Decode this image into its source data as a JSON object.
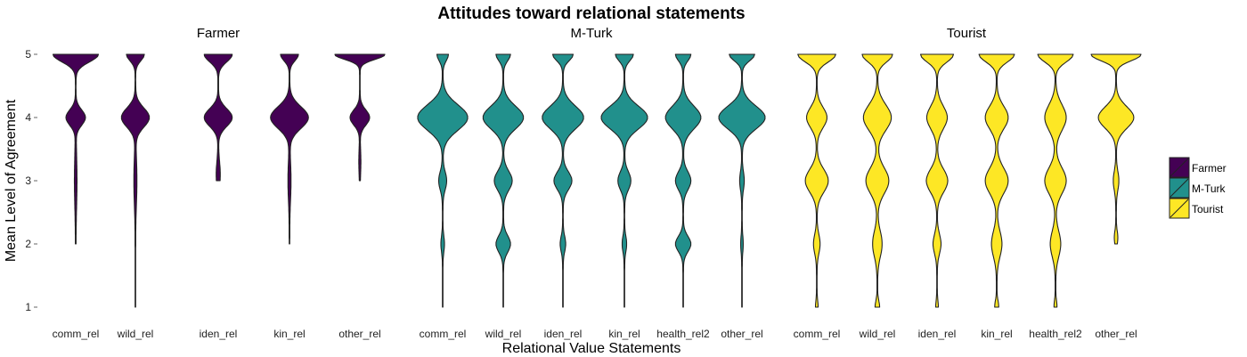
{
  "chart_data": {
    "type": "violin",
    "title": "Attitudes toward relational statements",
    "xlabel": "Relational Value Statements",
    "ylabel": "Mean Level of Agreement",
    "ylim": [
      1,
      5
    ],
    "yticks": [
      1,
      2,
      3,
      4,
      5
    ],
    "grid": false,
    "legend_position": "right",
    "legend": [
      {
        "name": "Farmer",
        "color": "#440154"
      },
      {
        "name": "M-Turk",
        "color": "#21908C"
      },
      {
        "name": "Tourist",
        "color": "#FDE725"
      }
    ],
    "facets": [
      {
        "name": "Farmer",
        "color": "#440154",
        "categories": [
          "comm_rel",
          "wild_rel",
          "iden_rel",
          "kin_rel",
          "other_rel"
        ],
        "violins": [
          {
            "category": "comm_rel",
            "min": 2,
            "max": 5,
            "peaks": [
              [
                5,
                0.9,
                0.12
              ],
              [
                4,
                0.38,
                0.12
              ],
              [
                3,
                0.04,
                0.4
              ]
            ]
          },
          {
            "category": "wild_rel",
            "min": 1,
            "max": 5,
            "peaks": [
              [
                5,
                0.35,
                0.1
              ],
              [
                4,
                0.55,
                0.15
              ],
              [
                3,
                0.05,
                0.35
              ]
            ]
          },
          {
            "category": "iden_rel",
            "min": 3,
            "max": 5,
            "peaks": [
              [
                5,
                0.55,
                0.12
              ],
              [
                4,
                0.55,
                0.14
              ],
              [
                3.1,
                0.07,
                0.2
              ]
            ]
          },
          {
            "category": "kin_rel",
            "min": 2,
            "max": 5,
            "peaks": [
              [
                5,
                0.35,
                0.1
              ],
              [
                4,
                0.75,
                0.17
              ],
              [
                3,
                0.05,
                0.3
              ]
            ]
          },
          {
            "category": "other_rel",
            "min": 3,
            "max": 5,
            "peaks": [
              [
                5,
                1.0,
                0.08
              ],
              [
                4,
                0.38,
                0.12
              ],
              [
                3.3,
                0.03,
                0.2
              ]
            ]
          }
        ]
      },
      {
        "name": "M-Turk",
        "color": "#21908C",
        "categories": [
          "comm_rel",
          "wild_rel",
          "iden_rel",
          "kin_rel",
          "health_rel2",
          "other_rel"
        ],
        "violins": [
          {
            "category": "comm_rel",
            "min": 1,
            "max": 5,
            "peaks": [
              [
                5,
                0.22,
                0.1
              ],
              [
                4,
                1.0,
                0.2
              ],
              [
                3,
                0.15,
                0.14
              ],
              [
                2,
                0.06,
                0.12
              ]
            ]
          },
          {
            "category": "wild_rel",
            "min": 1,
            "max": 5,
            "peaks": [
              [
                5,
                0.28,
                0.1
              ],
              [
                4,
                0.8,
                0.18
              ],
              [
                3,
                0.35,
                0.15
              ],
              [
                2,
                0.28,
                0.13
              ]
            ]
          },
          {
            "category": "iden_rel",
            "min": 1,
            "max": 5,
            "peaks": [
              [
                5,
                0.4,
                0.1
              ],
              [
                4,
                0.82,
                0.18
              ],
              [
                3,
                0.35,
                0.14
              ],
              [
                2,
                0.1,
                0.12
              ]
            ]
          },
          {
            "category": "kin_rel",
            "min": 1,
            "max": 5,
            "peaks": [
              [
                5,
                0.35,
                0.1
              ],
              [
                4,
                0.92,
                0.18
              ],
              [
                3,
                0.25,
                0.14
              ],
              [
                2,
                0.08,
                0.12
              ]
            ]
          },
          {
            "category": "health_rel2",
            "min": 1,
            "max": 5,
            "peaks": [
              [
                5,
                0.3,
                0.1
              ],
              [
                4,
                0.7,
                0.18
              ],
              [
                3,
                0.3,
                0.14
              ],
              [
                2,
                0.3,
                0.12
              ]
            ]
          },
          {
            "category": "other_rel",
            "min": 1,
            "max": 5,
            "peaks": [
              [
                5,
                0.5,
                0.1
              ],
              [
                4,
                0.92,
                0.18
              ],
              [
                3,
                0.08,
                0.14
              ],
              [
                2,
                0.04,
                0.12
              ]
            ]
          }
        ]
      },
      {
        "name": "Tourist",
        "color": "#FDE725",
        "categories": [
          "comm_rel",
          "wild_rel",
          "iden_rel",
          "kin_rel",
          "health_rel2",
          "other_rel"
        ],
        "violins": [
          {
            "category": "comm_rel",
            "min": 1,
            "max": 5,
            "peaks": [
              [
                5,
                0.75,
                0.12
              ],
              [
                4,
                0.4,
                0.16
              ],
              [
                3,
                0.45,
                0.18
              ],
              [
                2,
                0.12,
                0.15
              ],
              [
                1,
                0.04,
                0.1
              ]
            ]
          },
          {
            "category": "wild_rel",
            "min": 1,
            "max": 5,
            "peaks": [
              [
                5,
                0.6,
                0.12
              ],
              [
                4,
                0.55,
                0.2
              ],
              [
                3,
                0.45,
                0.2
              ],
              [
                2,
                0.18,
                0.2
              ],
              [
                1,
                0.08,
                0.1
              ]
            ]
          },
          {
            "category": "iden_rel",
            "min": 1,
            "max": 5,
            "peaks": [
              [
                5,
                0.65,
                0.12
              ],
              [
                4,
                0.4,
                0.18
              ],
              [
                3,
                0.42,
                0.18
              ],
              [
                2,
                0.15,
                0.15
              ],
              [
                1,
                0.04,
                0.1
              ]
            ]
          },
          {
            "category": "kin_rel",
            "min": 1,
            "max": 5,
            "peaks": [
              [
                5,
                0.7,
                0.12
              ],
              [
                4,
                0.45,
                0.18
              ],
              [
                3,
                0.45,
                0.2
              ],
              [
                2,
                0.2,
                0.2
              ],
              [
                1,
                0.07,
                0.1
              ]
            ]
          },
          {
            "category": "health_rel2",
            "min": 1,
            "max": 5,
            "peaks": [
              [
                5,
                0.7,
                0.12
              ],
              [
                4,
                0.42,
                0.2
              ],
              [
                3,
                0.42,
                0.2
              ],
              [
                2,
                0.2,
                0.2
              ],
              [
                1,
                0.05,
                0.1
              ]
            ]
          },
          {
            "category": "other_rel",
            "min": 2,
            "max": 5,
            "peaks": [
              [
                5,
                1.0,
                0.1
              ],
              [
                4,
                0.7,
                0.17
              ],
              [
                3,
                0.1,
                0.15
              ],
              [
                2.1,
                0.06,
                0.1
              ]
            ]
          }
        ]
      }
    ]
  }
}
